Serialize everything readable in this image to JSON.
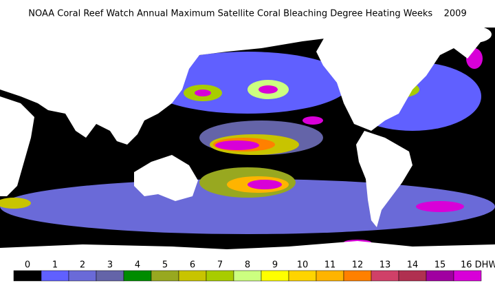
{
  "title": "NOAA Coral Reef Watch Annual Maximum Satellite Coral Bleaching Degree Heating Weeks    2009",
  "legend": {
    "items": [
      {
        "label": "0",
        "color": "#000000"
      },
      {
        "label": "1",
        "color": "#6060ff"
      },
      {
        "label": "2",
        "color": "#6a6ad8"
      },
      {
        "label": "3",
        "color": "#6464a8"
      },
      {
        "label": "4",
        "color": "#008c00"
      },
      {
        "label": "5",
        "color": "#98a820"
      },
      {
        "label": "6",
        "color": "#c8c400"
      },
      {
        "label": "7",
        "color": "#a8cc00"
      },
      {
        "label": "8",
        "color": "#ccff80"
      },
      {
        "label": "9",
        "color": "#ffff00"
      },
      {
        "label": "10",
        "color": "#ffd400"
      },
      {
        "label": "11",
        "color": "#ffb400"
      },
      {
        "label": "12",
        "color": "#ff8000"
      },
      {
        "label": "13",
        "color": "#d04068"
      },
      {
        "label": "14",
        "color": "#b03050"
      },
      {
        "label": "15",
        "color": "#a000a0"
      },
      {
        "label": "16 DHW",
        "color": "#d800d8"
      }
    ]
  }
}
